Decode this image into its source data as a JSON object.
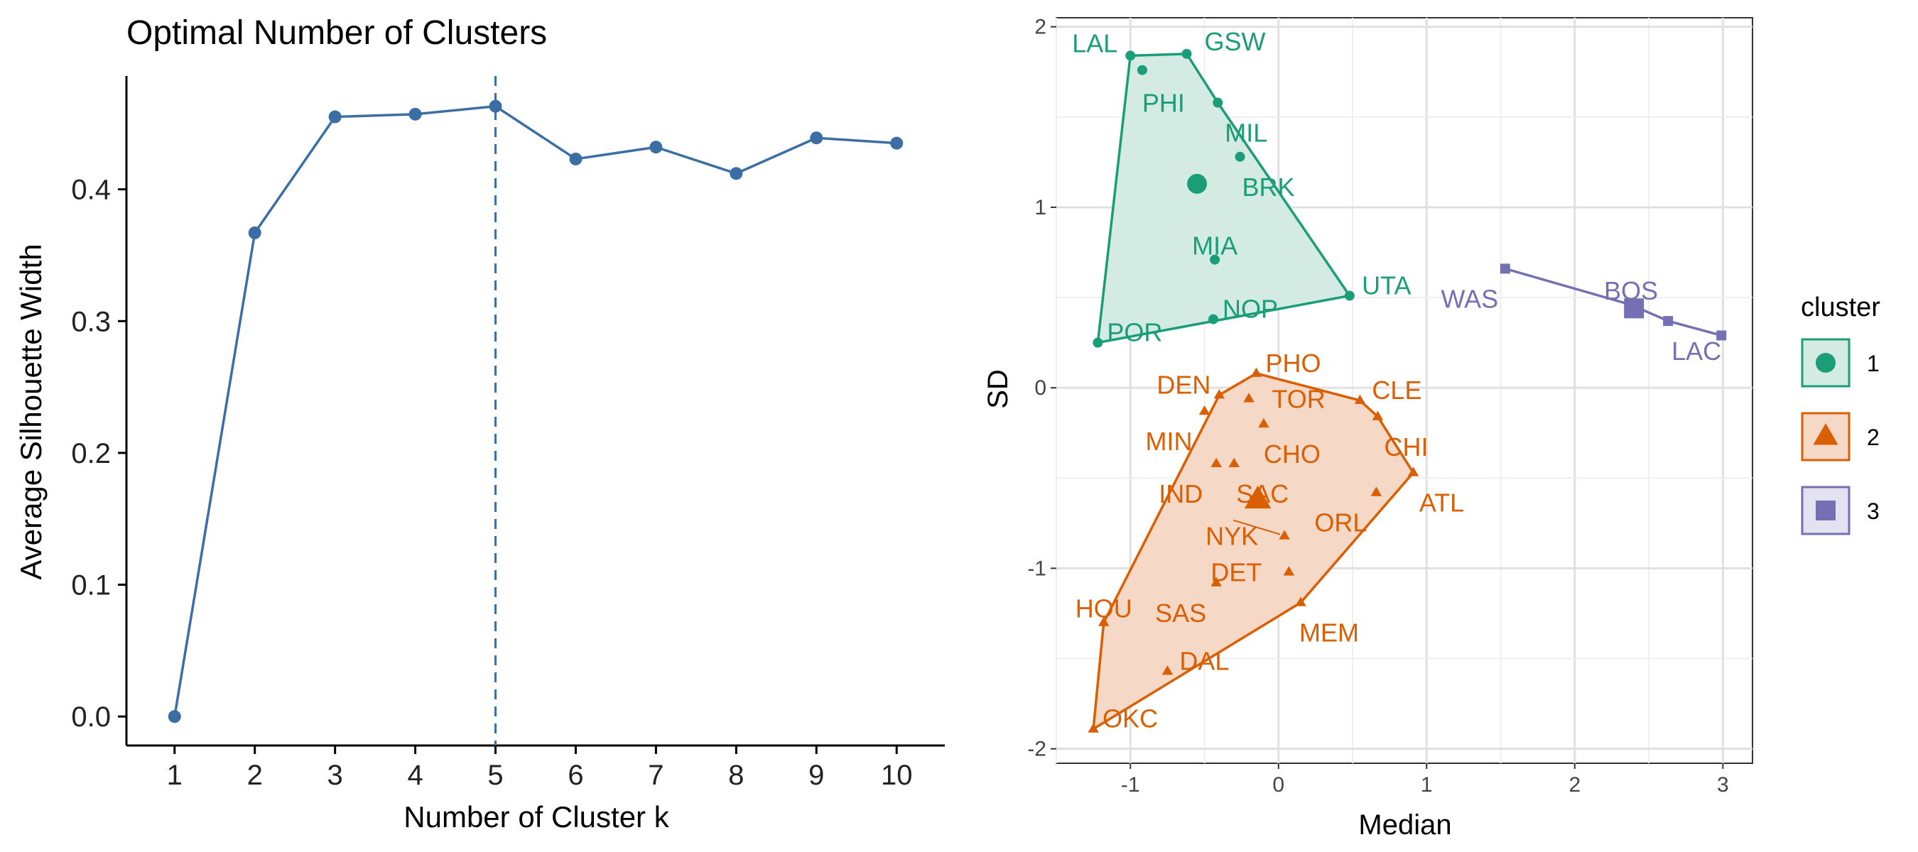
{
  "chart_data": [
    {
      "type": "line",
      "title": "Optimal Number of Clusters",
      "xlabel": "Number of Cluster k",
      "ylabel": "Average Silhouette Width",
      "x": [
        1,
        2,
        3,
        4,
        5,
        6,
        7,
        8,
        9,
        10
      ],
      "values": [
        0.0,
        0.367,
        0.455,
        0.457,
        0.463,
        0.423,
        0.432,
        0.412,
        0.439,
        0.435
      ],
      "x_tick_labels": [
        "1",
        "2",
        "3",
        "4",
        "5",
        "6",
        "7",
        "8",
        "9",
        "10"
      ],
      "y_tick_labels": [
        "0.0",
        "0.1",
        "0.2",
        "0.3",
        "0.4"
      ],
      "y_ticks": [
        0.0,
        0.1,
        0.2,
        0.3,
        0.4
      ],
      "xlim": [
        0.4,
        10.6
      ],
      "ylim": [
        -0.022,
        0.486
      ],
      "optimal_k": 5,
      "grid": false,
      "colors": {
        "line": "#3b6ea5",
        "vline": "#3b6ea5",
        "axis": "#000000"
      }
    },
    {
      "type": "scatter",
      "xlabel": "Median",
      "ylabel": "SD",
      "xlim": [
        -1.5,
        3.2
      ],
      "ylim": [
        -2.08,
        2.05
      ],
      "x_ticks": [
        -1,
        0,
        1,
        2,
        3
      ],
      "y_ticks": [
        -2,
        -1,
        0,
        1,
        2
      ],
      "x_tick_labels": [
        "-1",
        "0",
        "1",
        "2",
        "3"
      ],
      "y_tick_labels": [
        "-2",
        "-1",
        "0",
        "1",
        "2"
      ],
      "grid": true,
      "legend": {
        "title": "cluster",
        "position": "right",
        "entries": [
          {
            "label": "1",
            "color": "#1b9e77",
            "shape": "circle"
          },
          {
            "label": "2",
            "color": "#d95f02",
            "shape": "triangle"
          },
          {
            "label": "3",
            "color": "#7570b3",
            "shape": "square"
          }
        ]
      },
      "clusters": [
        {
          "cluster": "1",
          "color": "#1b9e77",
          "fill": "#d4ebe3",
          "shape": "circle",
          "centroid": [
            -0.55,
            1.13
          ],
          "hull": [
            "LAL",
            "GSW",
            "MIL",
            "UTA",
            "POR"
          ],
          "points": [
            {
              "label": "LAL",
              "x": -1.0,
              "y": 1.84,
              "label_pos": "top-left"
            },
            {
              "label": "GSW",
              "x": -0.62,
              "y": 1.85,
              "label_pos": "top-right"
            },
            {
              "label": "PHI",
              "x": -0.92,
              "y": 1.76,
              "label_pos": "below"
            },
            {
              "label": "MIL",
              "x": -0.41,
              "y": 1.58,
              "label_pos": "below-right"
            },
            {
              "label": "BRK",
              "x": -0.26,
              "y": 1.28,
              "label_pos": "below-right"
            },
            {
              "label": "MIA",
              "x": -0.43,
              "y": 0.71,
              "label_pos": "above"
            },
            {
              "label": "UTA",
              "x": 0.48,
              "y": 0.51,
              "label_pos": "above-right"
            },
            {
              "label": "NOP",
              "x": -0.44,
              "y": 0.38,
              "label_pos": "above-right"
            },
            {
              "label": "POR",
              "x": -1.22,
              "y": 0.25,
              "label_pos": "above-right"
            }
          ]
        },
        {
          "cluster": "2",
          "color": "#d95f02",
          "fill": "#f6d8c6",
          "shape": "triangle",
          "centroid": [
            -0.14,
            -0.62
          ],
          "hull": [
            "PHO",
            "CLE",
            "CHI",
            "ATL",
            "MEM",
            "OKC",
            "HOU",
            "DEN"
          ],
          "points": [
            {
              "label": "PHO",
              "x": -0.15,
              "y": 0.08,
              "label_pos": "above-right"
            },
            {
              "label": "DEN",
              "x": -0.4,
              "y": -0.04,
              "label_pos": "above-left"
            },
            {
              "label": "TOR",
              "x": -0.2,
              "y": -0.06,
              "label_pos": "right"
            },
            {
              "label": "CLE",
              "x": 0.55,
              "y": -0.07,
              "label_pos": "above-right"
            },
            {
              "label": "CHI",
              "x": 0.67,
              "y": -0.16,
              "label_pos": "below-right"
            },
            {
              "label": "MIN",
              "x": -0.5,
              "y": -0.13,
              "label_pos": "below-left"
            },
            {
              "label": "CHO",
              "x": -0.1,
              "y": -0.2,
              "label_pos": "below-right"
            },
            {
              "label": "IND",
              "x": -0.42,
              "y": -0.42,
              "label_pos": "below-left"
            },
            {
              "label": "SAC",
              "x": -0.3,
              "y": -0.42,
              "label_pos": "below-right"
            },
            {
              "label": "ATL",
              "x": 0.91,
              "y": -0.47,
              "label_pos": "below-right"
            },
            {
              "label": "ORL",
              "x": 0.66,
              "y": -0.58,
              "label_pos": "below-left"
            },
            {
              "label": "NYK",
              "x": 0.04,
              "y": -0.82,
              "label_pos": "left"
            },
            {
              "label": "DET",
              "x": 0.07,
              "y": -1.02,
              "label_pos": "left"
            },
            {
              "label": "SAS",
              "x": -0.42,
              "y": -1.08,
              "label_pos": "below-left"
            },
            {
              "label": "MEM",
              "x": 0.15,
              "y": -1.19,
              "label_pos": "below-right"
            },
            {
              "label": "HOU",
              "x": -1.18,
              "y": -1.3,
              "label_pos": "above"
            },
            {
              "label": "DAL",
              "x": -0.75,
              "y": -1.57,
              "label_pos": "above-right"
            },
            {
              "label": "OKC",
              "x": -1.25,
              "y": -1.89,
              "label_pos": "above-right"
            }
          ]
        },
        {
          "cluster": "3",
          "color": "#7570b3",
          "fill": "#7570b3",
          "shape": "square",
          "centroid": [
            2.4,
            0.44
          ],
          "hull": [
            "WAS",
            "LAC"
          ],
          "points": [
            {
              "label": "WAS",
              "x": 1.53,
              "y": 0.66,
              "label_pos": "below-left"
            },
            {
              "label": "BOS",
              "x": 2.38,
              "y": 0.46,
              "label_pos": "above"
            },
            {
              "label": "LAC",
              "x": 2.63,
              "y": 0.37,
              "label_pos": "below-right"
            },
            {
              "label": "LAC2",
              "x": 2.99,
              "y": 0.29,
              "label_pos": "none"
            }
          ]
        }
      ]
    }
  ]
}
